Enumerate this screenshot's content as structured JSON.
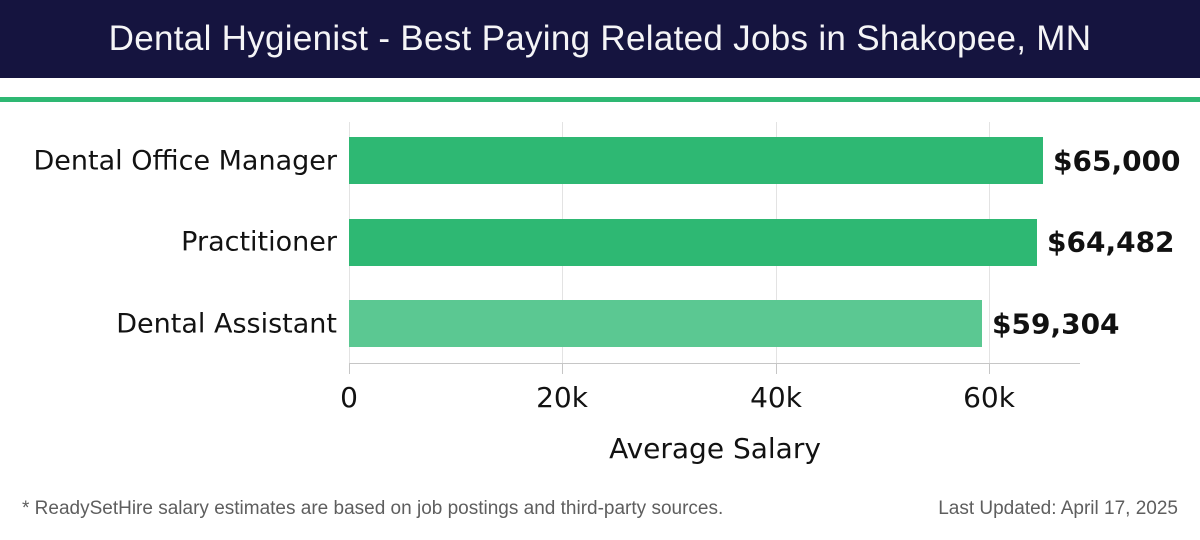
{
  "header": {
    "title": "Dental Hygienist - Best Paying Related Jobs in Shakopee, MN",
    "background_color": "#15143f",
    "accent_color": "#2eb873"
  },
  "chart_data": {
    "type": "bar",
    "orientation": "horizontal",
    "title": "Dental Hygienist - Best Paying Related Jobs in Shakopee, MN",
    "categories": [
      "Dental Office Manager",
      "Practitioner",
      "Dental Assistant"
    ],
    "values": [
      65000,
      64482,
      59304
    ],
    "value_labels": [
      "$65,000",
      "$64,482",
      "$59,304"
    ],
    "bar_colors": [
      "#2eb873",
      "#2eb873",
      "#5bc892"
    ],
    "xlabel": "Average Salary",
    "ylabel": "",
    "xlim": [
      0,
      68500
    ],
    "xticks": [
      {
        "value": 0,
        "label": "0"
      },
      {
        "value": 20000,
        "label": "20k"
      },
      {
        "value": 40000,
        "label": "40k"
      },
      {
        "value": 60000,
        "label": "60k"
      }
    ],
    "grid": true,
    "legend": false,
    "text_color": "#121212",
    "gridline_color": "#e3e3e3"
  },
  "footer": {
    "disclaimer": "* ReadySetHire salary estimates are based on job postings and third-party sources.",
    "last_updated": "Last Updated: April 17, 2025"
  }
}
